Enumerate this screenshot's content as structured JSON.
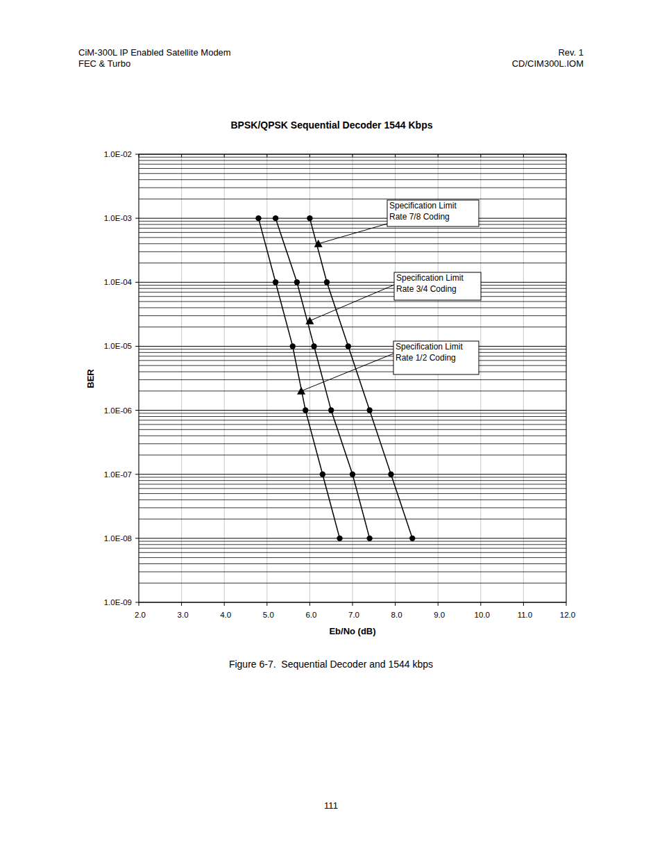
{
  "chart_data": {
    "type": "line",
    "title": "BPSK/QPSK Sequential Decoder 1544 Kbps",
    "x_label": "Eb/No (dB)",
    "y_label": "BER",
    "log": "y",
    "grid": true,
    "marker": "circle",
    "color": "#000000",
    "xlim": [
      2,
      12
    ],
    "ylim": [
      1e-09,
      0.01
    ],
    "xticks": [
      {
        "value": 2,
        "label": "2.0"
      },
      {
        "value": 3,
        "label": "3.0"
      },
      {
        "value": 4,
        "label": "4.0"
      },
      {
        "value": 5,
        "label": "5.0"
      },
      {
        "value": 6,
        "label": "6.0"
      },
      {
        "value": 7,
        "label": "7.0"
      },
      {
        "value": 8,
        "label": "8.0"
      },
      {
        "value": 9,
        "label": "9.0"
      },
      {
        "value": 10,
        "label": "10.0"
      },
      {
        "value": 11,
        "label": "11.0"
      },
      {
        "value": 12,
        "label": "12.0"
      }
    ],
    "yticks": [
      {
        "value": 1e-09,
        "label": "1.0E-09"
      },
      {
        "value": 1e-08,
        "label": "1.0E-08"
      },
      {
        "value": 1e-07,
        "label": "1.0E-07"
      },
      {
        "value": 1e-06,
        "label": "1.0E-06"
      },
      {
        "value": 1e-05,
        "label": "1.0E-05"
      },
      {
        "value": 0.0001,
        "label": "1.0E-04"
      },
      {
        "value": 0.001,
        "label": "1.0E-03"
      },
      {
        "value": 0.01,
        "label": "1.0E-02"
      }
    ],
    "series": [
      {
        "x": [
          4.8,
          5.2,
          5.6,
          5.9,
          6.3,
          6.7
        ],
        "values": [
          0.001,
          0.0001,
          1e-05,
          1e-06,
          1e-07,
          1e-08
        ]
      },
      {
        "x": [
          5.2,
          5.7,
          6.1,
          6.5,
          7.0,
          7.4
        ],
        "values": [
          0.001,
          0.0001,
          1e-05,
          1e-06,
          1e-07,
          1e-08
        ]
      },
      {
        "x": [
          6.0,
          6.4,
          6.9,
          7.4,
          7.9,
          8.4
        ],
        "values": [
          0.001,
          0.0001,
          1e-05,
          1e-06,
          1e-07,
          1e-08
        ]
      }
    ],
    "annotations": [
      {
        "text": [
          "Specification Limit",
          "Rate 7/8 Coding"
        ],
        "x": 6.2,
        "y": 0.0004
      },
      {
        "text": [
          "Specification Limit",
          "Rate 3/4 Coding"
        ],
        "x": 6.0,
        "y": 2.5e-05
      },
      {
        "text": [
          "Specification Limit",
          "Rate 1/2 Coding"
        ],
        "x": 5.8,
        "y": 2e-06
      }
    ]
  },
  "page": {
    "header_left": [
      "CiM-300L IP Enabled Satellite Modem",
      "FEC & Turbo"
    ],
    "header_right": [
      "Rev. 1",
      "CD/CIM300L.IOM"
    ],
    "caption": "Figure 6-7.  Sequential Decoder and 1544 kbps",
    "page_number": "111"
  }
}
